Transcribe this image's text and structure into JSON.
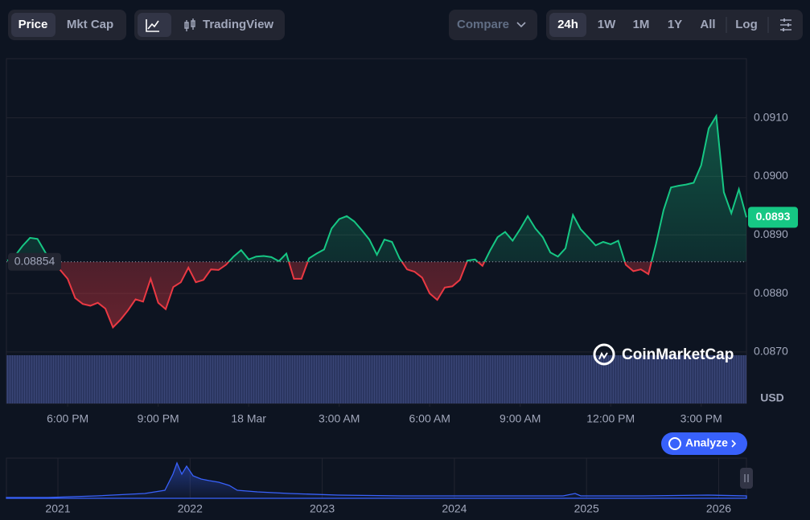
{
  "toolbar": {
    "price_tabs": [
      "Price",
      "Mkt Cap"
    ],
    "chart_mode": "TradingView",
    "compare": "Compare",
    "ranges": [
      "24h",
      "1W",
      "1M",
      "1Y",
      "All"
    ],
    "log": "Log"
  },
  "currency": "USD",
  "watermark": "CoinMarketCap",
  "analyze": "Analyze",
  "navigator_years": [
    "2021",
    "2022",
    "2023",
    "2024",
    "2025",
    "2026"
  ],
  "chart_data": {
    "type": "line",
    "x": [
      16,
      16.25,
      16.5,
      16.75,
      17,
      17.25,
      17.5,
      17.75,
      18,
      18.25,
      18.5,
      18.75,
      19,
      19.25,
      19.5,
      19.75,
      20,
      20.25,
      20.5,
      20.75,
      21,
      21.25,
      21.5,
      21.75,
      22,
      22.25,
      22.5,
      22.75,
      23,
      23.25,
      23.5,
      23.75,
      24,
      24.25,
      24.5,
      24.75,
      25,
      25.25,
      25.5,
      25.75,
      26,
      26.25,
      26.5,
      26.75,
      27,
      27.25,
      27.5,
      27.75,
      28,
      28.25,
      28.5,
      28.75,
      29,
      29.25,
      29.5,
      29.75,
      30,
      30.25,
      30.5,
      30.75,
      31,
      31.25,
      31.5,
      31.75,
      32,
      32.25,
      32.5,
      32.75,
      33,
      33.25,
      33.5,
      33.75,
      34,
      34.25,
      34.5,
      34.75,
      35,
      35.25,
      35.5,
      35.75,
      36,
      36.25,
      36.5,
      36.75,
      37,
      37.25,
      37.5,
      37.75,
      38,
      38.25,
      38.5,
      38.75,
      39,
      39.25,
      39.5,
      39.75,
      40,
      40.25,
      40.5
    ],
    "series": [
      {
        "values": [
          0.08856,
          0.08864,
          0.08881,
          0.08895,
          0.08893,
          0.08871,
          0.08849,
          0.0884,
          0.08825,
          0.08792,
          0.08782,
          0.08779,
          0.08784,
          0.08774,
          0.08742,
          0.08755,
          0.08771,
          0.0879,
          0.08786,
          0.08825,
          0.08784,
          0.08773,
          0.08811,
          0.08819,
          0.08844,
          0.08819,
          0.08823,
          0.08841,
          0.0884,
          0.08849,
          0.08863,
          0.08874,
          0.08858,
          0.08863,
          0.08864,
          0.08862,
          0.08855,
          0.08868,
          0.08825,
          0.08825,
          0.0886,
          0.08868,
          0.08875,
          0.08911,
          0.08927,
          0.08932,
          0.08923,
          0.08908,
          0.08892,
          0.08866,
          0.08892,
          0.08888,
          0.0886,
          0.08841,
          0.08837,
          0.08827,
          0.088,
          0.08789,
          0.0881,
          0.08812,
          0.08823,
          0.08856,
          0.08858,
          0.08847,
          0.08873,
          0.08896,
          0.08905,
          0.0889,
          0.0891,
          0.08932,
          0.08911,
          0.08896,
          0.0887,
          0.08863,
          0.08877,
          0.08934,
          0.0891,
          0.08896,
          0.08882,
          0.08888,
          0.08884,
          0.0889,
          0.08849,
          0.08838,
          0.08841,
          0.08833,
          0.08884,
          0.08942,
          0.08981,
          0.08984,
          0.08986,
          0.08989,
          0.09019,
          0.09082,
          0.09103,
          0.08973,
          0.08937,
          0.08978,
          0.0893
        ]
      }
    ],
    "up_color": "#16c784",
    "down_color": "#ea3943",
    "baseline": 0.08854,
    "current_price": 0.0893,
    "xlim": [
      15.97,
      40.5
    ],
    "xticks": [
      {
        "value": 18,
        "label": "6:00 PM"
      },
      {
        "value": 21,
        "label": "9:00 PM"
      },
      {
        "value": 24,
        "label": "18 Mar"
      },
      {
        "value": 27,
        "label": "3:00 AM"
      },
      {
        "value": 30,
        "label": "6:00 AM"
      },
      {
        "value": 33,
        "label": "9:00 AM"
      },
      {
        "value": 36,
        "label": "12:00 PM"
      },
      {
        "value": 39,
        "label": "3:00 PM"
      }
    ],
    "ylim": [
      0.08612,
      0.09201
    ],
    "yticks": [
      {
        "value": 0.087,
        "label": "0.0870"
      },
      {
        "value": 0.088,
        "label": "0.0880"
      },
      {
        "value": 0.089,
        "label": "0.0890"
      },
      {
        "value": 0.09,
        "label": "0.0900"
      },
      {
        "value": 0.091,
        "label": "0.0910"
      }
    ],
    "grid": true
  }
}
